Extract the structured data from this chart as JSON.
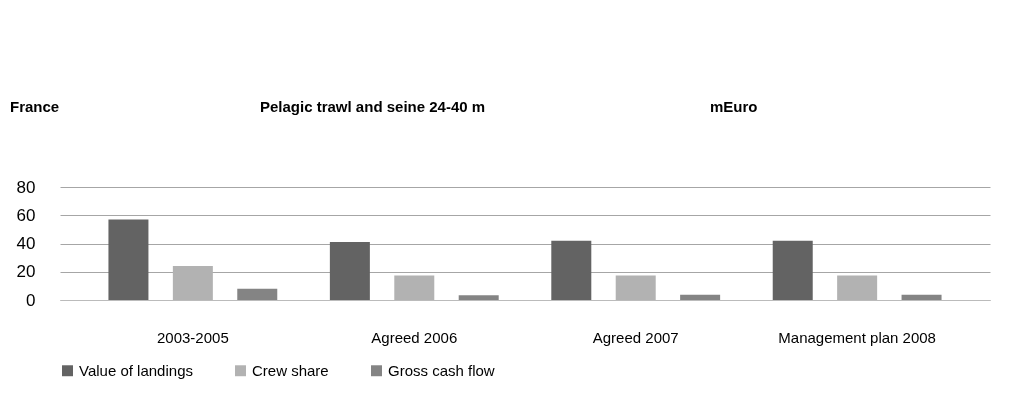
{
  "chart_data": {
    "type": "bar",
    "title": "Pelagic trawl and seine 24-40 m",
    "annotations": [
      "France",
      "mEuro"
    ],
    "categories": [
      "2003-2005",
      "Agreed 2006",
      "Agreed 2007",
      "Management plan 2008"
    ],
    "series": [
      {
        "name": "Value of landings",
        "color": "#636363",
        "values": [
          57,
          41,
          42,
          42
        ]
      },
      {
        "name": "Crew share",
        "color": "#b2b2b2",
        "values": [
          24,
          17.3,
          17.3,
          17.3
        ]
      },
      {
        "name": "Gross cash flow",
        "color": "#848484",
        "values": [
          8,
          3.3,
          3.8,
          3.8
        ]
      }
    ],
    "ylim": [
      0,
      80
    ],
    "yticks": [
      0,
      20,
      40,
      60,
      80
    ],
    "grid": "y",
    "legend": "bottom"
  }
}
